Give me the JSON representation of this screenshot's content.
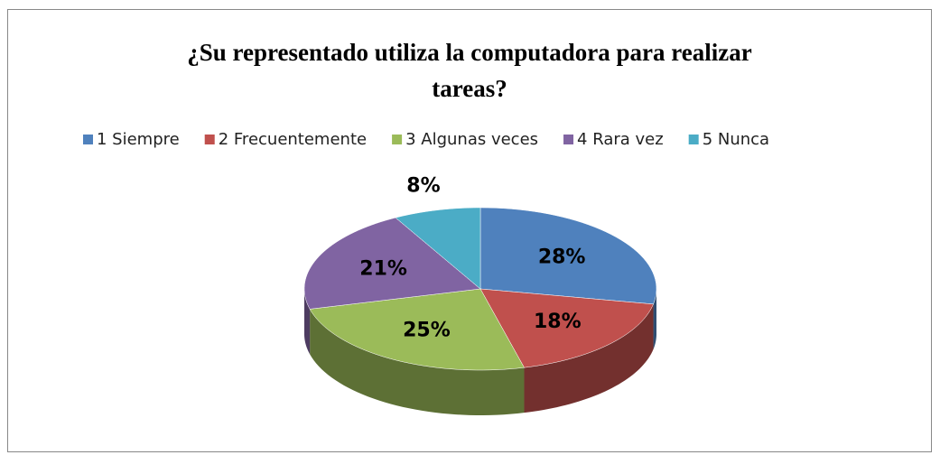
{
  "chart_data": {
    "type": "pie",
    "title": "¿Su representado utiliza la computadora para realizar tareas?",
    "categories": [
      "1 Siempre",
      "2 Frecuentemente",
      "3 Algunas veces",
      "4 Rara vez",
      "5 Nunca"
    ],
    "values": [
      28,
      18,
      25,
      21,
      8
    ],
    "value_labels": [
      "28%",
      "18%",
      "25%",
      "21%",
      "8%"
    ],
    "colors": [
      "#4f81bd",
      "#c0504d",
      "#9bbb59",
      "#8064a2",
      "#4bacc6"
    ],
    "legend": "top"
  }
}
